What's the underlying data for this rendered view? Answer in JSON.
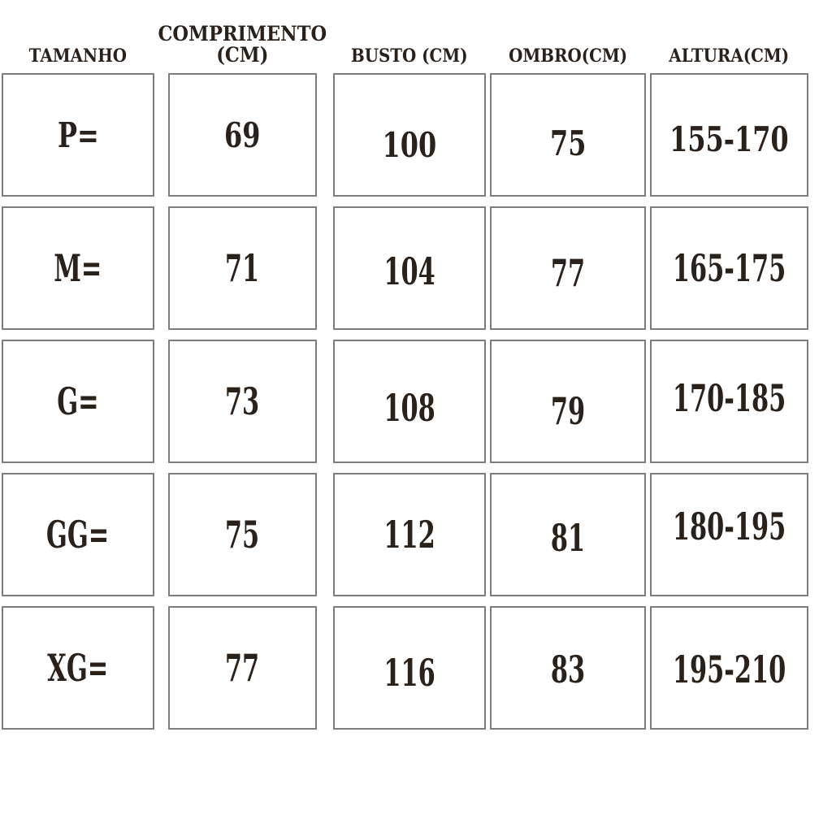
{
  "chart_data": {
    "type": "table",
    "columns": [
      "TAMANHO",
      "COMPRIMENTO (CM)",
      "BUSTO (CM)",
      "OMBRO(CM)",
      "ALTURA(CM)"
    ],
    "rows": [
      [
        "P=",
        "69",
        "100",
        "75",
        "155-170"
      ],
      [
        "M=",
        "71",
        "104",
        "77",
        "165-175"
      ],
      [
        "G=",
        "73",
        "108",
        "79",
        "170-185"
      ],
      [
        "GG=",
        "75",
        "112",
        "81",
        "180-195"
      ],
      [
        "XG=",
        "77",
        "116",
        "83",
        "195-210"
      ]
    ],
    "title": "",
    "legend": "none",
    "grid": "cell-boxes"
  },
  "colors": {
    "text": "#2b211b",
    "cell_border": "#7d7d7d",
    "background": "#ffffff"
  }
}
